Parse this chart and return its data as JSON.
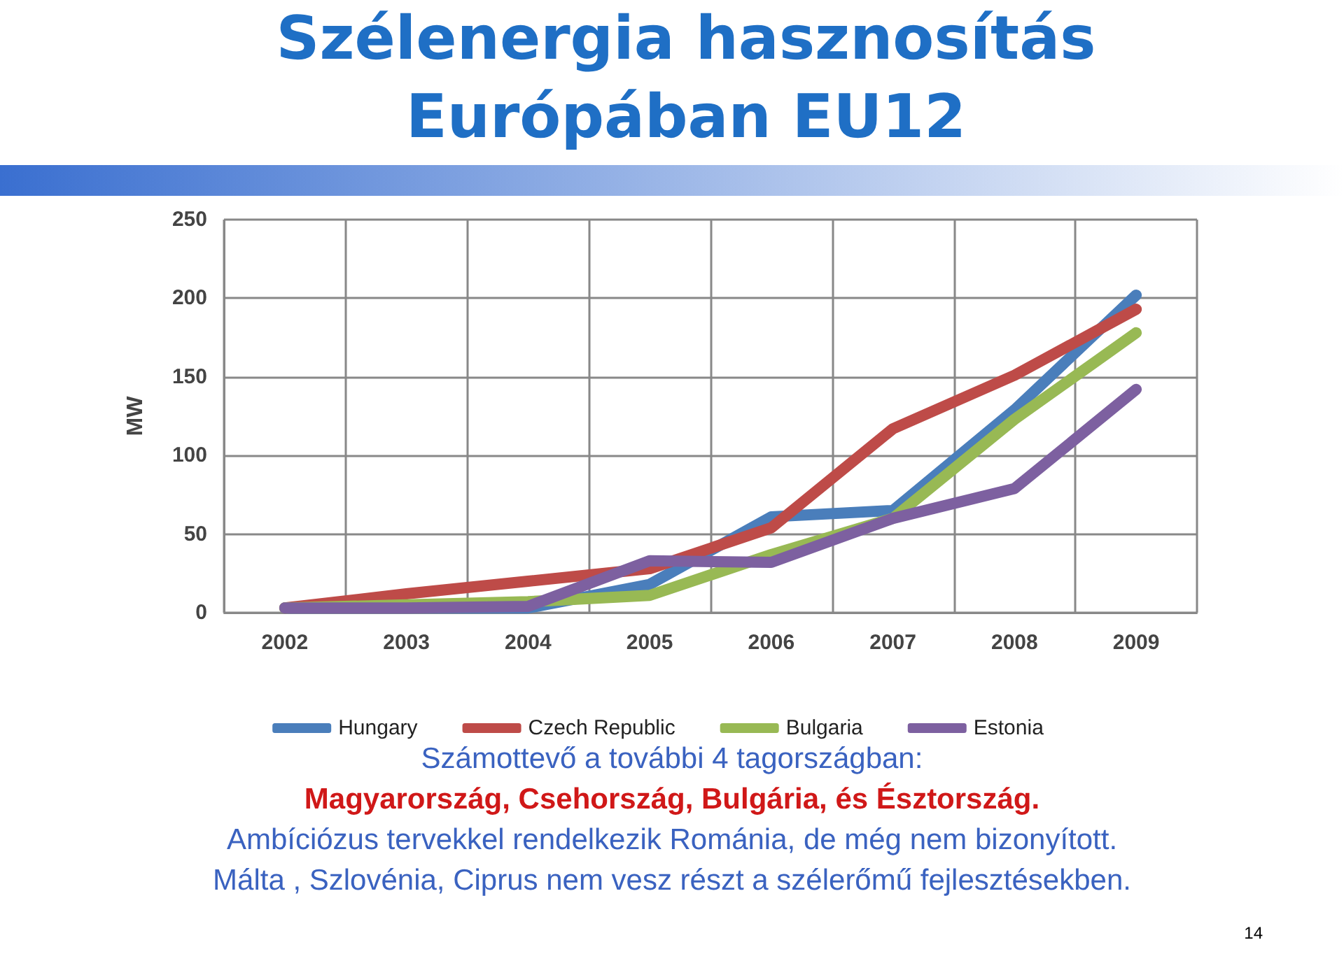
{
  "chart_data": {
    "type": "line",
    "title": "Szélenergia hasznosítás Európában EU12",
    "ylabel": "MW",
    "categories": [
      "2002",
      "2003",
      "2004",
      "2005",
      "2006",
      "2007",
      "2008",
      "2009"
    ],
    "series": [
      {
        "name": "Hungary",
        "color": "#4a7ebb",
        "values": [
          3,
          3,
          3,
          18,
          61,
          65,
          129,
          202
        ]
      },
      {
        "name": "Czech Republic",
        "color": "#be4b48",
        "values": [
          3,
          12,
          20,
          28,
          54,
          117,
          151,
          193
        ]
      },
      {
        "name": "Bulgaria",
        "color": "#98b954",
        "values": [
          3,
          5,
          7,
          11,
          37,
          60,
          123,
          178
        ]
      },
      {
        "name": "Estonia",
        "color": "#7d60a0",
        "values": [
          3,
          3,
          4,
          33,
          32,
          60,
          79,
          142
        ]
      }
    ],
    "ylim": [
      0,
      250
    ],
    "yticks": [
      0,
      50,
      100,
      150,
      200,
      250
    ],
    "grid": true,
    "legend": "bottom",
    "marker": "none",
    "line_style": "solid",
    "annotations": [
      "Számottevő a további 4 tagországban:",
      "Magyarország, Csehország, Bulgária, és Észtország.",
      "Ambíciózus tervekkel rendelkezik Románia, de még nem bizonyított.",
      "Málta , Szlovénia, Ciprus nem vesz részt a szélerőmű fejlesztésekben.",
      "14"
    ]
  }
}
